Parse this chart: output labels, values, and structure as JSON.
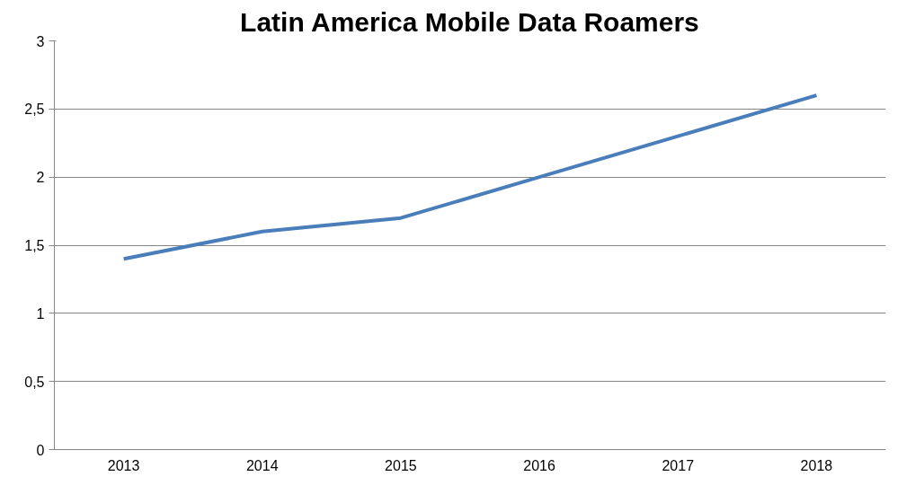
{
  "chart_data": {
    "type": "line",
    "title": "Latin America Mobile Data Roamers",
    "categories": [
      "2013",
      "2014",
      "2015",
      "2016",
      "2017",
      "2018"
    ],
    "series": [
      {
        "color": "#4a7ebb",
        "values": [
          1.4,
          1.6,
          1.7,
          2.0,
          2.3,
          2.6
        ]
      }
    ],
    "ylim": [
      0,
      3
    ],
    "yticks": [
      0,
      {
        "value": 0.5,
        "label": "0,5"
      },
      1,
      {
        "value": 1.5,
        "label": "1,5"
      },
      2,
      {
        "value": 2.5,
        "label": "2,5"
      },
      3
    ],
    "grid": "y",
    "marker": "none",
    "line_style": "solid"
  }
}
